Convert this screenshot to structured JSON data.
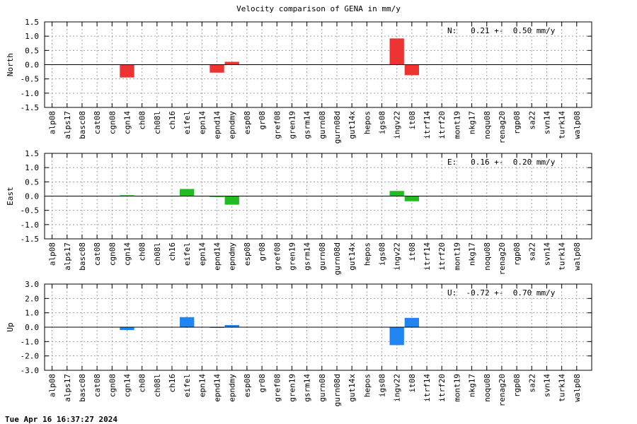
{
  "title": "Velocity comparison of GENA in mm/y",
  "footer_date": "Tue Apr 16 16:37:27 2024",
  "chart_data": [
    {
      "type": "bar",
      "ylabel": "North",
      "ylim": [
        -1.5,
        1.5
      ],
      "yticks": [
        1.5,
        1.0,
        0.5,
        0.0,
        -0.5,
        -1.0,
        -1.5
      ],
      "ytick_labels": [
        "1.5",
        "1.0",
        "0.5",
        "0.0",
        "-0.5",
        "-1.0",
        "-1.5"
      ],
      "color": "#ee3333",
      "grid": true,
      "annotation": "N:   0.21 +-  0.50 mm/y",
      "categories": [
        "alp08",
        "alps17",
        "basc08",
        "cat08",
        "cgn08",
        "cgn14",
        "ch08",
        "ch08l",
        "ch16",
        "eifel",
        "epn14",
        "epnd14",
        "epndmy",
        "esp08",
        "gr08",
        "gref08",
        "gren19",
        "gsrm14",
        "gurn08",
        "gurn08d",
        "gut14x",
        "hepos",
        "igs08",
        "ingv22",
        "it08",
        "itrf14",
        "itrf20",
        "mont19",
        "nkg17",
        "noqu08",
        "renag20",
        "rgp08",
        "sa22",
        "svn14",
        "turk14",
        "walp08"
      ],
      "values": [
        null,
        null,
        null,
        null,
        null,
        -0.45,
        null,
        null,
        null,
        null,
        null,
        -0.28,
        0.1,
        null,
        null,
        null,
        null,
        null,
        null,
        null,
        null,
        null,
        null,
        0.92,
        -0.37,
        null,
        null,
        null,
        null,
        null,
        null,
        null,
        null,
        null,
        null,
        null
      ]
    },
    {
      "type": "bar",
      "ylabel": "East",
      "ylim": [
        -1.5,
        1.5
      ],
      "yticks": [
        1.5,
        1.0,
        0.5,
        0.0,
        -0.5,
        -1.0,
        -1.5
      ],
      "ytick_labels": [
        "1.5",
        "1.0",
        "0.5",
        "0.0",
        "-0.5",
        "-1.0",
        "-1.5"
      ],
      "color": "#22bb22",
      "grid": true,
      "annotation": "E:   0.16 +-  0.20 mm/y",
      "categories": [
        "alp08",
        "alps17",
        "basc08",
        "cat08",
        "cgn08",
        "cgn14",
        "ch08",
        "ch08l",
        "ch16",
        "eifel",
        "epn14",
        "epnd14",
        "epndmy",
        "esp08",
        "gr08",
        "gref08",
        "gren19",
        "gsrm14",
        "gurn08",
        "gurn08d",
        "gut14x",
        "hepos",
        "igs08",
        "ingv22",
        "it08",
        "itrf14",
        "itrf20",
        "mont19",
        "nkg17",
        "noqu08",
        "renag20",
        "rgp08",
        "sa22",
        "svn14",
        "turk14",
        "walp08"
      ],
      "values": [
        null,
        null,
        null,
        null,
        null,
        0.03,
        null,
        null,
        null,
        0.25,
        null,
        -0.03,
        -0.3,
        null,
        null,
        null,
        null,
        null,
        null,
        null,
        null,
        null,
        null,
        0.18,
        -0.18,
        null,
        null,
        null,
        null,
        null,
        null,
        null,
        null,
        null,
        null,
        null
      ]
    },
    {
      "type": "bar",
      "ylabel": "Up",
      "ylim": [
        -3.0,
        3.0
      ],
      "yticks": [
        3.0,
        2.0,
        1.0,
        0.0,
        -1.0,
        -2.0,
        -3.0
      ],
      "ytick_labels": [
        "3.0",
        "2.0",
        "1.0",
        "0.0",
        "-1.0",
        "-2.0",
        "-3.0"
      ],
      "color": "#1f85f2",
      "grid": true,
      "annotation": "U:  -0.72 +-  0.70 mm/y",
      "categories": [
        "alp08",
        "alps17",
        "basc08",
        "cat08",
        "cgn08",
        "cgn14",
        "ch08",
        "ch08l",
        "ch16",
        "eifel",
        "epn14",
        "epnd14",
        "epndmy",
        "esp08",
        "gr08",
        "gref08",
        "gren19",
        "gsrm14",
        "gurn08",
        "gurn08d",
        "gut14x",
        "hepos",
        "igs08",
        "ingv22",
        "it08",
        "itrf14",
        "itrf20",
        "mont19",
        "nkg17",
        "noqu08",
        "renag20",
        "rgp08",
        "sa22",
        "svn14",
        "turk14",
        "walp08"
      ],
      "values": [
        null,
        null,
        null,
        null,
        null,
        -0.2,
        null,
        null,
        null,
        0.7,
        null,
        -0.05,
        0.15,
        null,
        null,
        null,
        null,
        null,
        null,
        null,
        null,
        null,
        null,
        -1.25,
        0.65,
        null,
        null,
        null,
        null,
        null,
        null,
        null,
        null,
        null,
        null,
        null
      ]
    }
  ]
}
